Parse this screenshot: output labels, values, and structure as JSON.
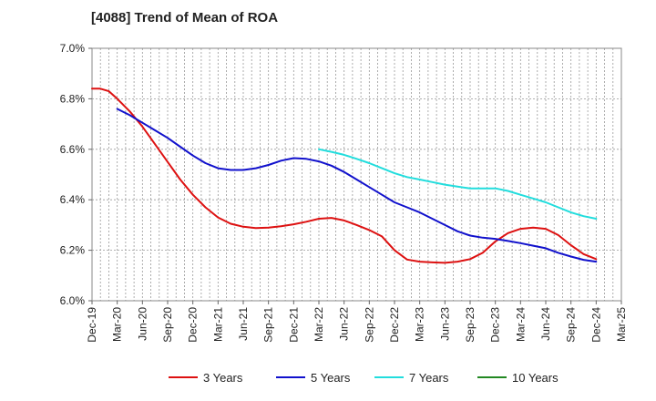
{
  "chart_data": {
    "type": "line",
    "title": "[4088]  Trend of Mean of ROA",
    "xlabel": "",
    "ylabel": "",
    "ylim": [
      6.0,
      7.0
    ],
    "y_ticks": [
      6.0,
      6.2,
      6.4,
      6.6,
      6.8,
      7.0
    ],
    "y_tick_labels": [
      "6.0%",
      "6.2%",
      "6.4%",
      "6.6%",
      "6.8%",
      "7.0%"
    ],
    "x_tick_labels": [
      "Dec-19",
      "Mar-20",
      "Jun-20",
      "Sep-20",
      "Dec-20",
      "Mar-21",
      "Jun-21",
      "Sep-21",
      "Dec-21",
      "Mar-22",
      "Jun-22",
      "Sep-22",
      "Dec-22",
      "Mar-23",
      "Jun-23",
      "Sep-23",
      "Dec-23",
      "Mar-24",
      "Jun-24",
      "Sep-24",
      "Dec-24",
      "Mar-25"
    ],
    "grid": true,
    "legend_position": "bottom",
    "series": [
      {
        "name": "3 Years",
        "color": "#dd1111",
        "points": [
          [
            0,
            6.84
          ],
          [
            0.33,
            6.84
          ],
          [
            0.67,
            6.83
          ],
          [
            1,
            6.8
          ],
          [
            1.5,
            6.75
          ],
          [
            2,
            6.69
          ],
          [
            2.5,
            6.62
          ],
          [
            3,
            6.55
          ],
          [
            3.5,
            6.48
          ],
          [
            4,
            6.42
          ],
          [
            4.5,
            6.37
          ],
          [
            5,
            6.33
          ],
          [
            5.5,
            6.305
          ],
          [
            6,
            6.293
          ],
          [
            6.5,
            6.288
          ],
          [
            7,
            6.29
          ],
          [
            7.5,
            6.295
          ],
          [
            8,
            6.303
          ],
          [
            8.5,
            6.313
          ],
          [
            9,
            6.325
          ],
          [
            9.5,
            6.328
          ],
          [
            10,
            6.318
          ],
          [
            10.5,
            6.3
          ],
          [
            11,
            6.28
          ],
          [
            11.5,
            6.255
          ],
          [
            12,
            6.2
          ],
          [
            12.5,
            6.163
          ],
          [
            13,
            6.155
          ],
          [
            13.5,
            6.152
          ],
          [
            14,
            6.15
          ],
          [
            14.5,
            6.155
          ],
          [
            15,
            6.165
          ],
          [
            15.5,
            6.19
          ],
          [
            16,
            6.235
          ],
          [
            16.5,
            6.268
          ],
          [
            17,
            6.285
          ],
          [
            17.5,
            6.29
          ],
          [
            18,
            6.285
          ],
          [
            18.5,
            6.26
          ],
          [
            19,
            6.22
          ],
          [
            19.5,
            6.185
          ],
          [
            20,
            6.165
          ]
        ]
      },
      {
        "name": "5 Years",
        "color": "#1111cc",
        "points": [
          [
            1,
            6.76
          ],
          [
            1.5,
            6.735
          ],
          [
            2,
            6.705
          ],
          [
            2.5,
            6.675
          ],
          [
            3,
            6.645
          ],
          [
            3.5,
            6.61
          ],
          [
            4,
            6.575
          ],
          [
            4.5,
            6.545
          ],
          [
            5,
            6.525
          ],
          [
            5.5,
            6.518
          ],
          [
            6,
            6.518
          ],
          [
            6.5,
            6.525
          ],
          [
            7,
            6.538
          ],
          [
            7.5,
            6.555
          ],
          [
            8,
            6.565
          ],
          [
            8.5,
            6.562
          ],
          [
            9,
            6.552
          ],
          [
            9.5,
            6.535
          ],
          [
            10,
            6.51
          ],
          [
            10.5,
            6.48
          ],
          [
            11,
            6.45
          ],
          [
            11.5,
            6.42
          ],
          [
            12,
            6.39
          ],
          [
            12.5,
            6.37
          ],
          [
            13,
            6.35
          ],
          [
            13.5,
            6.325
          ],
          [
            14,
            6.3
          ],
          [
            14.5,
            6.275
          ],
          [
            15,
            6.258
          ],
          [
            15.5,
            6.25
          ],
          [
            16,
            6.245
          ],
          [
            16.5,
            6.237
          ],
          [
            17,
            6.228
          ],
          [
            17.5,
            6.218
          ],
          [
            18,
            6.208
          ],
          [
            18.5,
            6.19
          ],
          [
            19,
            6.175
          ],
          [
            19.5,
            6.162
          ],
          [
            20,
            6.155
          ]
        ]
      },
      {
        "name": "7 Years",
        "color": "#22dddd",
        "points": [
          [
            9,
            6.6
          ],
          [
            9.5,
            6.59
          ],
          [
            10,
            6.578
          ],
          [
            10.5,
            6.562
          ],
          [
            11,
            6.545
          ],
          [
            11.5,
            6.525
          ],
          [
            12,
            6.505
          ],
          [
            12.5,
            6.49
          ],
          [
            13,
            6.48
          ],
          [
            13.5,
            6.47
          ],
          [
            14,
            6.46
          ],
          [
            14.5,
            6.452
          ],
          [
            15,
            6.445
          ],
          [
            15.5,
            6.445
          ],
          [
            16,
            6.445
          ],
          [
            16.5,
            6.435
          ],
          [
            17,
            6.42
          ],
          [
            17.5,
            6.405
          ],
          [
            18,
            6.39
          ],
          [
            18.5,
            6.37
          ],
          [
            19,
            6.35
          ],
          [
            19.5,
            6.335
          ],
          [
            20,
            6.325
          ]
        ]
      },
      {
        "name": "10 Years",
        "color": "#228822",
        "points": []
      }
    ]
  }
}
